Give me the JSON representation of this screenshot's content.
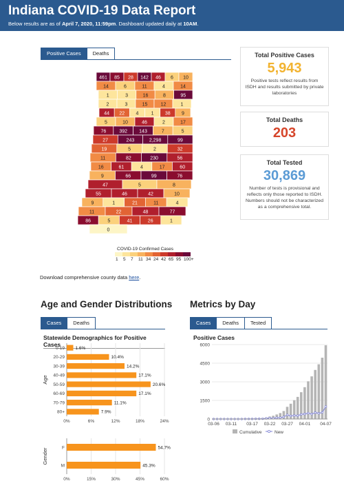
{
  "header": {
    "title": "Indiana COVID-19 Data Report",
    "subtitle_pre": "Below results are as of ",
    "subtitle_date": "April 7, 2020, 11:59pm",
    "subtitle_mid": ". Dashboard updated daily at ",
    "subtitle_time": "10AM",
    "subtitle_end": "."
  },
  "map_tabs": [
    "Positive Cases",
    "Deaths"
  ],
  "map": {
    "legend_title": "COVID-19 Confirmed Cases",
    "legend_ticks": [
      "1",
      "5",
      "7",
      "11",
      "34",
      "24",
      "42",
      "65",
      "95",
      "100+"
    ],
    "legend_colors": [
      "#fdf5c6",
      "#fde59c",
      "#fbd17c",
      "#f8b25e",
      "#f18b45",
      "#e26434",
      "#cc3a2b",
      "#b01f2d",
      "#8a0d2f",
      "#6a0a3a"
    ],
    "county_values": [
      "461",
      "85",
      "28",
      "142",
      "46",
      "6",
      "10",
      "14",
      "6",
      "11",
      "4",
      "14",
      "1",
      "3",
      "16",
      "8",
      "95",
      "2",
      "3",
      "15",
      "12",
      "1",
      "44",
      "22",
      "4",
      "1",
      "38",
      "9",
      "5",
      "10",
      "46",
      "2",
      "17",
      "76",
      "392",
      "143",
      "7",
      "5",
      "27",
      "243",
      "2,298",
      "99",
      "19",
      "5",
      "2",
      "32",
      "11",
      "82",
      "230",
      "56",
      "16",
      "61",
      "4",
      "17",
      "60",
      "9",
      "66",
      "99",
      "76",
      "47",
      "5",
      "8",
      "55",
      "46",
      "42",
      "10",
      "9",
      "1",
      "21",
      "11",
      "4",
      "11",
      "22",
      "48",
      "77",
      "86",
      "5",
      "41",
      "26",
      "1",
      "0"
    ]
  },
  "cards": [
    {
      "title": "Total Positive Cases",
      "value": "5,943",
      "color": "#f2b330",
      "desc": "Positive tests reflect results from ISDH and results submitted by private laboratories"
    },
    {
      "title": "Total Deaths",
      "value": "203",
      "color": "#d6452a",
      "desc": ""
    },
    {
      "title": "Total Tested",
      "value": "30,869",
      "color": "#5b9bd5",
      "desc": "Number of tests is provisional and reflects only those reported to ISDH. Numbers should not be characterized as a comprehensive total."
    }
  ],
  "download": {
    "text": "Download comprehensive county data ",
    "link": "here",
    "end": "."
  },
  "age_section": {
    "title": "Age and Gender Distributions",
    "tabs": [
      "Cases",
      "Deaths"
    ]
  },
  "metrics_section": {
    "title": "Metrics by Day",
    "tabs": [
      "Cases",
      "Deaths",
      "Tested"
    ]
  },
  "chart_data": [
    {
      "type": "bar",
      "title": "Statewide Demographics for Positive Cases",
      "ylabel": "Age",
      "orientation": "horizontal",
      "categories": [
        "0-19",
        "20-29",
        "30-39",
        "40-49",
        "50-59",
        "60-69",
        "70-79",
        "80+"
      ],
      "values": [
        1.6,
        10.4,
        14.2,
        17.1,
        20.6,
        17.1,
        11.1,
        7.9
      ],
      "value_labels": [
        "1.6%",
        "10.4%",
        "14.2%",
        "17.1%",
        "20.6%",
        "17.1%",
        "11.1%",
        "7.9%"
      ],
      "xlim": [
        0,
        24
      ],
      "xticks": [
        "0%",
        "6%",
        "12%",
        "18%",
        "24%"
      ],
      "color": "#f7941d",
      "grid": true
    },
    {
      "type": "bar",
      "title": "",
      "ylabel": "Gender",
      "orientation": "horizontal",
      "categories": [
        "F",
        "M"
      ],
      "values": [
        54.7,
        45.3
      ],
      "value_labels": [
        "54.7%",
        "45.3%"
      ],
      "xlim": [
        0,
        60
      ],
      "xticks": [
        "0%",
        "15%",
        "30%",
        "45%",
        "60%"
      ],
      "color": "#f7941d",
      "grid": true
    },
    {
      "type": "bar",
      "title": "Positive Cases",
      "xlabel": "",
      "ylabel": "",
      "x": [
        "03-06",
        "03-07",
        "03-08",
        "03-09",
        "03-10",
        "03-11",
        "03-12",
        "03-13",
        "03-14",
        "03-15",
        "03-16",
        "03-17",
        "03-18",
        "03-19",
        "03-20",
        "03-21",
        "03-22",
        "03-23",
        "03-24",
        "03-25",
        "03-26",
        "03-27",
        "03-28",
        "03-29",
        "03-30",
        "03-31",
        "04-01",
        "04-02",
        "04-03",
        "04-04",
        "04-05",
        "04-06",
        "04-07"
      ],
      "xticks": [
        "03-06",
        "03-11",
        "03-17",
        "03-22",
        "03-27",
        "04-01",
        "04-07"
      ],
      "ylim": [
        0,
        6000
      ],
      "yticks": [
        "0",
        "1500",
        "3000",
        "4500",
        "6000"
      ],
      "series": [
        {
          "name": "Cumulative",
          "type": "bar",
          "color": "#b5b5b5",
          "values": [
            1,
            2,
            4,
            6,
            8,
            10,
            12,
            13,
            15,
            19,
            24,
            30,
            39,
            56,
            79,
            126,
            201,
            259,
            365,
            477,
            645,
            981,
            1232,
            1514,
            1786,
            2159,
            2565,
            3039,
            3437,
            3953,
            4411,
            4944,
            5943
          ]
        },
        {
          "name": "New",
          "type": "line",
          "color": "#7b7fd4",
          "values": [
            1,
            1,
            2,
            2,
            2,
            2,
            2,
            1,
            2,
            4,
            5,
            6,
            9,
            17,
            23,
            47,
            75,
            58,
            106,
            112,
            168,
            336,
            251,
            282,
            272,
            373,
            406,
            474,
            398,
            516,
            458,
            533,
            999
          ]
        }
      ],
      "legend": "bottom",
      "grid": true
    }
  ]
}
